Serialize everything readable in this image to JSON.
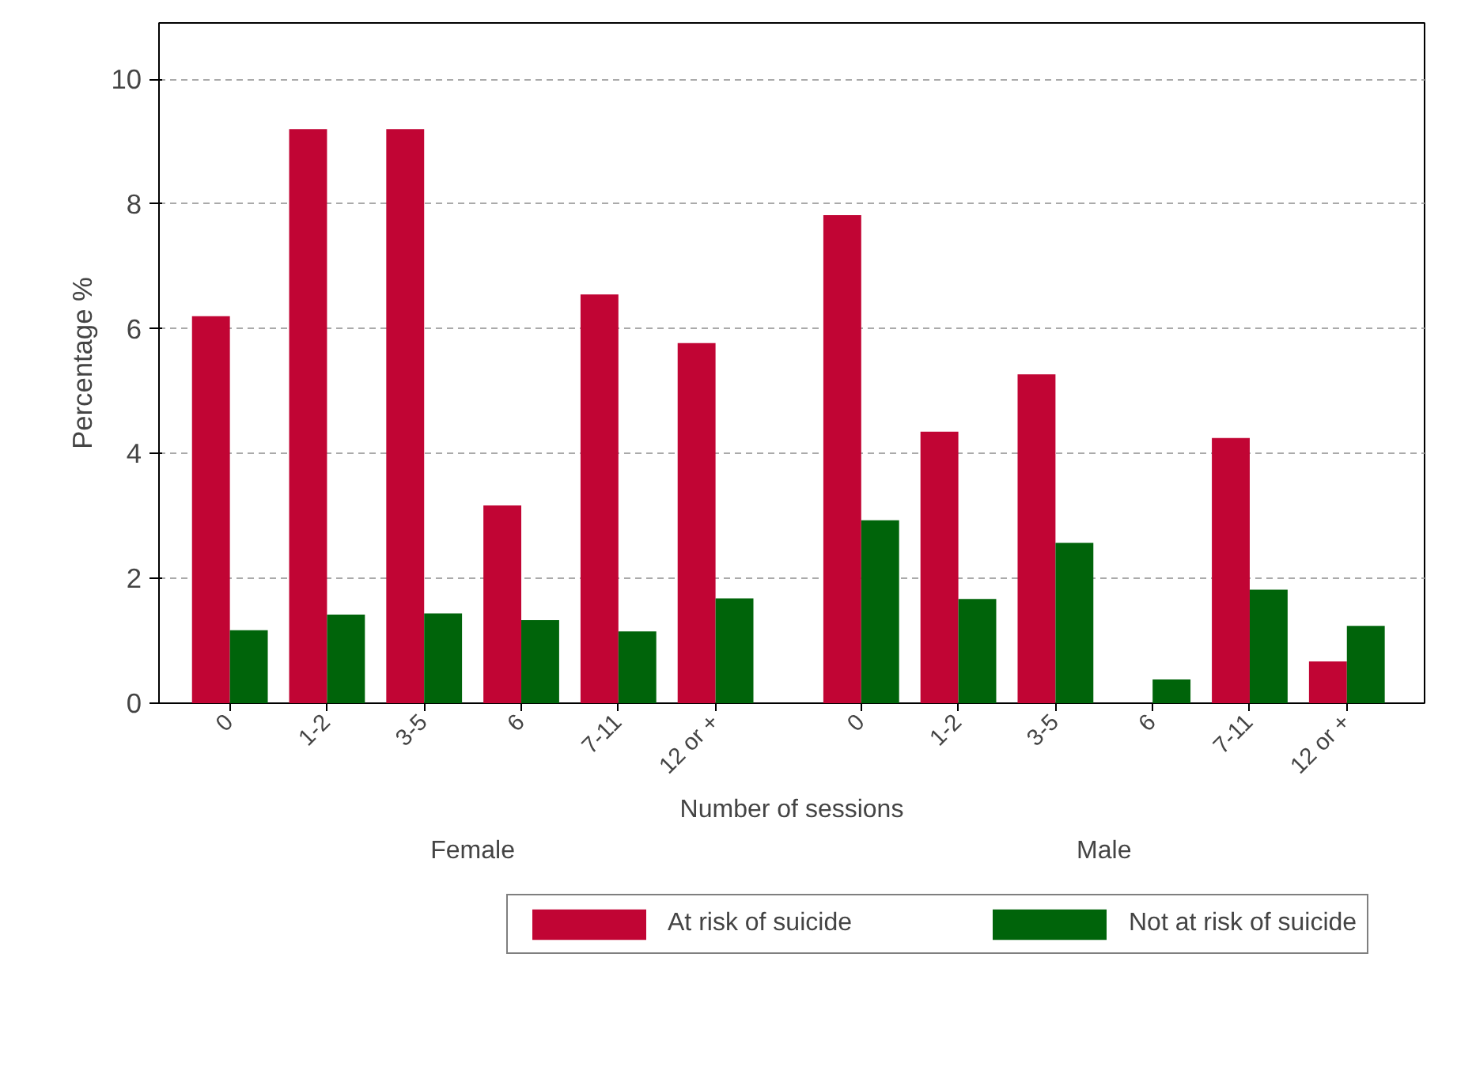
{
  "chart_data": {
    "type": "bar",
    "categories": [
      "0",
      "1-2",
      "3-5",
      "6",
      "7-11",
      "12 or +",
      "0",
      "1-2",
      "3-5",
      "6",
      "7-11",
      "12 or +"
    ],
    "annotations": [
      "Female",
      "Male"
    ],
    "xlabel": "Number of sessions",
    "ylabel": "Percentage %",
    "series": [
      {
        "name": "At risk of suicide",
        "color": "#c10534",
        "values": [
          6.2,
          9.2,
          9.2,
          3.17,
          6.55,
          5.77,
          7.82,
          4.35,
          5.27,
          0,
          4.25,
          0.67
        ]
      },
      {
        "name": "Not at risk of suicide",
        "color": "#00640a",
        "values": [
          1.17,
          1.42,
          1.44,
          1.33,
          1.15,
          1.68,
          2.93,
          1.67,
          2.57,
          0.38,
          1.82,
          1.24
        ]
      }
    ],
    "ylim": [
      0,
      10.9
    ],
    "yticks": [
      0,
      2,
      4,
      6,
      8,
      10
    ],
    "grid": "y",
    "legend": "bottom"
  }
}
